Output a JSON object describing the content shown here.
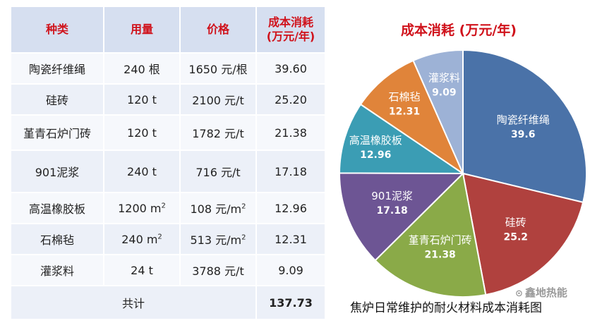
{
  "table": {
    "headers": [
      "种类",
      "用量",
      "价格",
      "成本消耗 (万元/年)"
    ],
    "header_cost_line1": "成本消耗",
    "header_cost_line2": "(万元/年)",
    "rows": [
      {
        "name": "陶瓷纤维绳",
        "qty": "240 根",
        "qty_sup": "",
        "price": "1650 元/根",
        "price_sup": "",
        "cost": "39.60"
      },
      {
        "name": "硅砖",
        "qty": "120 t",
        "qty_sup": "",
        "price": "2100 元/t",
        "price_sup": "",
        "cost": "25.20"
      },
      {
        "name": "堇青石炉门砖",
        "qty": "120 t",
        "qty_sup": "",
        "price": "1782 元/t",
        "price_sup": "",
        "cost": "21.38"
      },
      {
        "name": "901泥浆",
        "qty": "240 t",
        "qty_sup": "",
        "price": "716 元/t",
        "price_sup": "",
        "cost": "17.18"
      },
      {
        "name": "高温橡胶板",
        "qty": "1200 m",
        "qty_sup": "2",
        "price": "108 元/m",
        "price_sup": "2",
        "cost": "12.96"
      },
      {
        "name": "石棉毡",
        "qty": "240 m",
        "qty_sup": "2",
        "price": "513 元/m",
        "price_sup": "2",
        "cost": "12.31"
      },
      {
        "name": "灌浆料",
        "qty": "24 t",
        "qty_sup": "",
        "price": "3788 元/t",
        "price_sup": "",
        "cost": "9.09"
      }
    ],
    "total_label": "共计",
    "total_value": "137.73"
  },
  "chart_data": {
    "type": "pie",
    "title": "成本消耗 (万元/年)",
    "slices": [
      {
        "label": "陶瓷纤维绳",
        "value": 39.6,
        "value_label": "39.6",
        "color": "#4a72a8"
      },
      {
        "label": "硅砖",
        "value": 25.2,
        "value_label": "25.2",
        "color": "#b0413e"
      },
      {
        "label": "堇青石炉门砖",
        "value": 21.38,
        "value_label": "21.38",
        "color": "#8aaa48"
      },
      {
        "label": "901泥浆",
        "value": 17.18,
        "value_label": "17.18",
        "color": "#6d5594"
      },
      {
        "label": "高温橡胶板",
        "value": 12.96,
        "value_label": "12.96",
        "color": "#3b9db4"
      },
      {
        "label": "石棉毡",
        "value": 12.31,
        "value_label": "12.31",
        "color": "#e0843a"
      },
      {
        "label": "灌浆料",
        "value": 9.09,
        "value_label": "9.09",
        "color": "#9db2d6"
      }
    ],
    "start": "12 o'clock",
    "direction": "clockwise"
  },
  "caption": "焦炉日常维护的耐火材料成本消耗图",
  "watermark": {
    "icon": "wechat-icon",
    "text": "鑫地热能"
  }
}
